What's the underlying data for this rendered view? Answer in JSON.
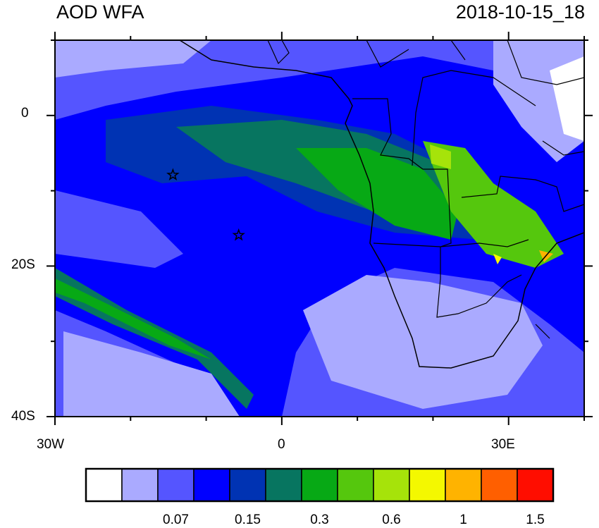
{
  "title_left": "AOD WFA",
  "title_right": "2018-10-15_18",
  "map": {
    "lon_range": [
      -30,
      40
    ],
    "lat_range": [
      -40,
      10
    ],
    "lon_tick_labels": [
      "30W",
      "0",
      "30E"
    ],
    "lat_tick_labels": [
      "0",
      "20S",
      "40S"
    ],
    "markers": [
      {
        "symbol": "star",
        "lon": -14.4,
        "lat": -7.9
      },
      {
        "symbol": "star",
        "lon": -5.7,
        "lat": -15.9
      }
    ]
  },
  "colorbar": {
    "colors": [
      "#ffffff",
      "#aaaaff",
      "#5555ff",
      "#0000ff",
      "#0033b3",
      "#077560",
      "#07a915",
      "#55c70d",
      "#a6e30a",
      "#f4f800",
      "#ffb300",
      "#ff5f00",
      "#ff0d00"
    ],
    "labels": [
      "0.07",
      "0.15",
      "0.3",
      "0.6",
      "1",
      "1.5"
    ]
  }
}
